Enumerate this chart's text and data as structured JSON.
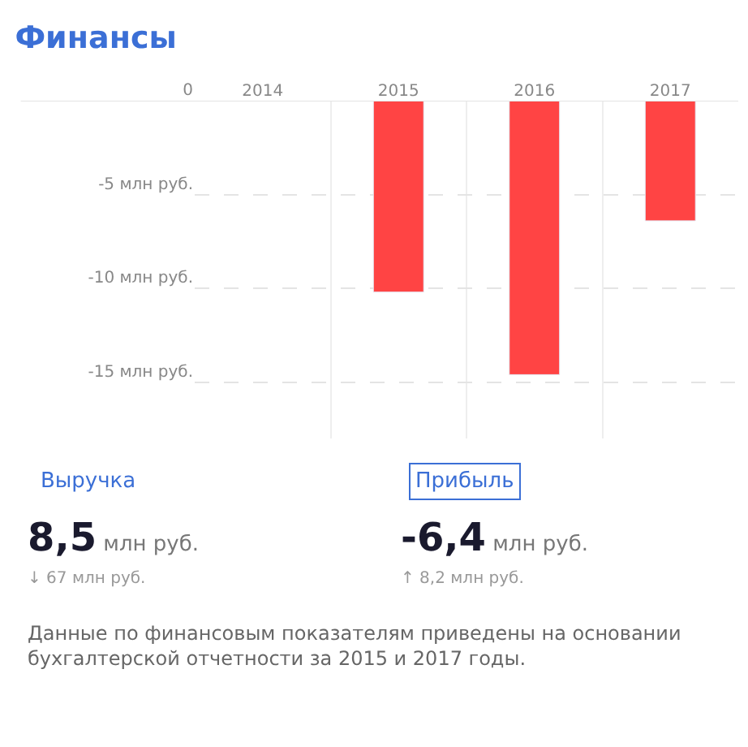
{
  "chart_data": {
    "type": "bar",
    "title": "Финансы",
    "categories": [
      "2014",
      "2015",
      "2016",
      "2017"
    ],
    "values": [
      null,
      -10.2,
      -14.6,
      -6.4
    ],
    "color": "#ff4444",
    "ylim": [
      -18,
      0
    ],
    "yticks": [
      {
        "value": 0,
        "label": "0"
      },
      {
        "value": -5,
        "label": "-5 млн руб."
      },
      {
        "value": -10,
        "label": "-10 млн руб."
      },
      {
        "value": -15,
        "label": "-15 млн руб."
      }
    ],
    "grid": true,
    "legend": false,
    "annotations": [
      "Выручка",
      "Прибыль",
      "8,5 млн руб.",
      "-6,4 млн руб.",
      "↓ 67 млн руб.",
      "↑ 8,2 млн руб.",
      "Данные по финансовым показателям приведены на основании бухгалтерской отчетности за 2015 и 2017 годы."
    ]
  }
}
